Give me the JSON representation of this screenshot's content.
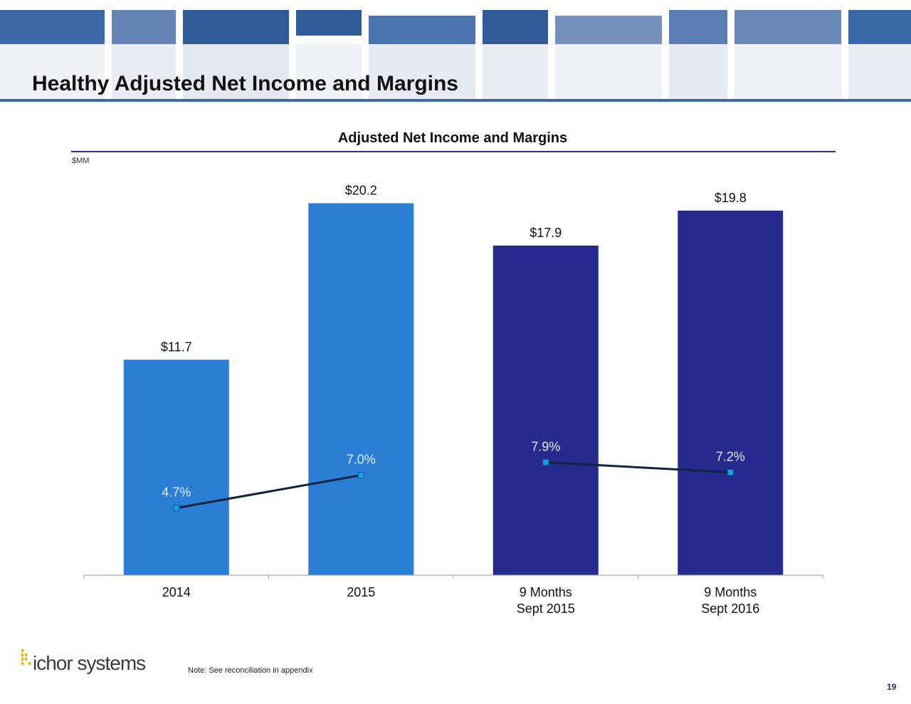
{
  "slide": {
    "title": "Healthy Adjusted Net Income and Margins",
    "footnote": "Note: See reconciliation in appendix",
    "page_number": "19",
    "logo_text": "ichor systems"
  },
  "colors": {
    "light_blue": "#2a7fd4",
    "navy": "#262a8c",
    "line": "#0f2440",
    "marker": "#1aa0e6",
    "header_dark": "#3a69a8",
    "header_mid": "#5f7fb3",
    "header_pale": "#e9ecf3"
  },
  "chart_data": {
    "type": "bar",
    "title": "Adjusted Net Income and Margins",
    "ylabel": "$MM",
    "xlabel": "",
    "ylim": [
      0,
      22.5
    ],
    "categories": [
      "2014",
      "2015",
      "9 Months Sept 2015",
      "9 Months Sept 2016"
    ],
    "category_lines": [
      [
        "2014"
      ],
      [
        "2015"
      ],
      [
        "9 Months",
        "Sept 2015"
      ],
      [
        "9 Months",
        "Sept 2016"
      ]
    ],
    "series": [
      {
        "type": "bar",
        "values": [
          11.7,
          20.2,
          17.9,
          19.8
        ],
        "labels": [
          "$11.7",
          "$20.2",
          "$17.9",
          "$19.8"
        ],
        "colors": [
          "#2a7fd4",
          "#2a7fd4",
          "#262a8c",
          "#262a8c"
        ]
      },
      {
        "type": "line",
        "values": [
          4.7,
          7.0,
          7.9,
          7.2
        ],
        "labels": [
          "4.7%",
          "7.0%",
          "7.9%",
          "7.2%"
        ],
        "segments": [
          [
            0,
            1
          ],
          [
            2,
            3
          ]
        ],
        "pct_ylim": [
          0,
          29
        ]
      }
    ]
  }
}
